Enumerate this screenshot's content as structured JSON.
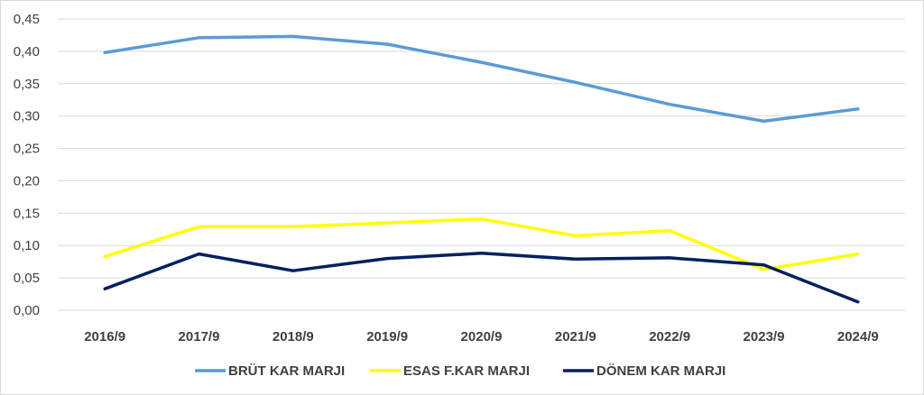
{
  "chart_data": {
    "type": "line",
    "categories": [
      "2016/9",
      "2017/9",
      "2018/9",
      "2019/9",
      "2020/9",
      "2021/9",
      "2022/9",
      "2023/9",
      "2024/9"
    ],
    "series": [
      {
        "name": "BRÜT KAR MARJI",
        "color": "#5b9bd5",
        "values": [
          0.398,
          0.421,
          0.423,
          0.411,
          0.383,
          0.352,
          0.318,
          0.292,
          0.311
        ]
      },
      {
        "name": "ESAS F.KAR MARJI",
        "color": "#ffff00",
        "values": [
          0.083,
          0.129,
          0.129,
          0.135,
          0.141,
          0.115,
          0.123,
          0.063,
          0.087
        ]
      },
      {
        "name": "DÖNEM KAR MARJI",
        "color": "#002060",
        "values": [
          0.033,
          0.087,
          0.061,
          0.08,
          0.088,
          0.079,
          0.081,
          0.07,
          0.013
        ]
      }
    ],
    "ylim": [
      0,
      0.45
    ],
    "yticks": [
      "0,00",
      "0,05",
      "0,10",
      "0,15",
      "0,20",
      "0,25",
      "0,30",
      "0,35",
      "0,40",
      "0,45"
    ],
    "grid": true,
    "legend_position": "bottom",
    "gridline_color": "#d9d9d9"
  }
}
